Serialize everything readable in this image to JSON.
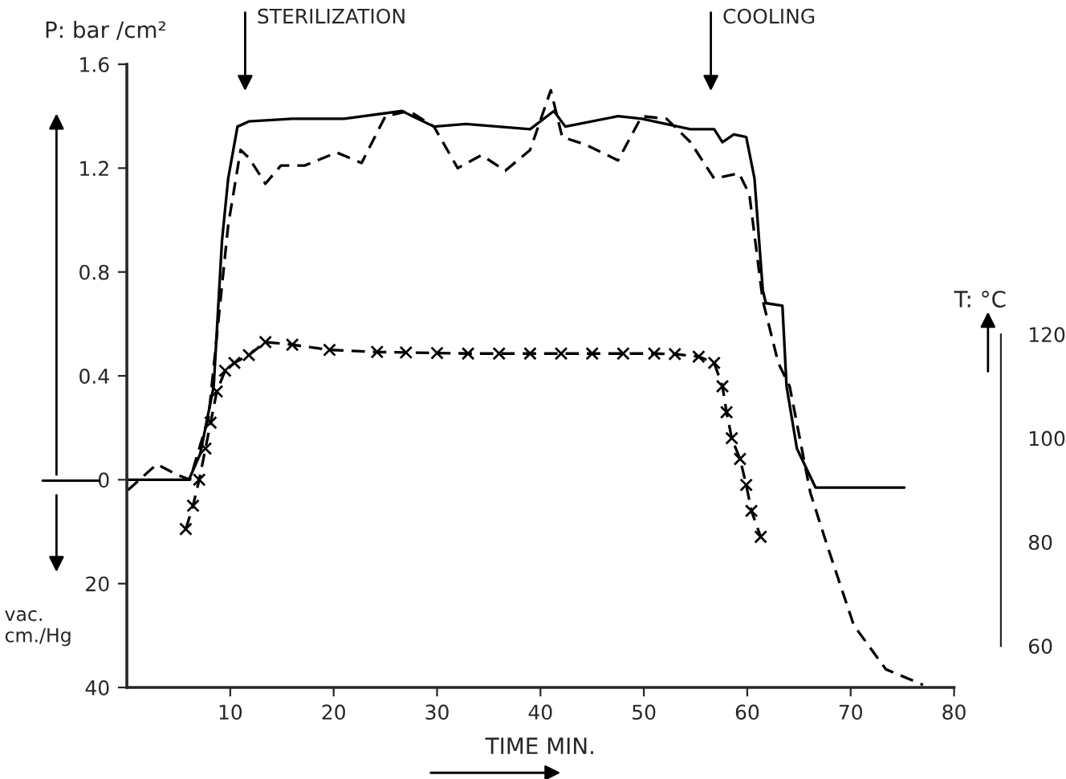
{
  "chart_data": {
    "type": "line",
    "xlabel": "TIME MIN.",
    "ylabel": "P: bar /cm²",
    "y2label": "T: °C",
    "xlim": [
      0,
      80
    ],
    "xticks": [
      10,
      20,
      30,
      40,
      50,
      60,
      70,
      80
    ],
    "ylim": [
      -0.8,
      1.6
    ],
    "yticks": [
      0,
      0.4,
      0.8,
      1.2,
      1.6
    ],
    "y3lim": [
      40,
      -80
    ],
    "y3ticks": [
      20,
      40
    ],
    "y2lim": [
      52,
      172
    ],
    "y2ticks": [
      60,
      80,
      100,
      120
    ],
    "grid": false,
    "legend": false,
    "annotations": [
      "STERILIZATION",
      "COOLING",
      "vac.\ncm./Hg"
    ],
    "series": [
      {
        "color": "#000000",
        "line_style": "solid",
        "marker": "none",
        "x": [
          0,
          6,
          7.1,
          8.4,
          9.2,
          9.8,
          10.7,
          11.8,
          16,
          21,
          26.6,
          29.7,
          32.8,
          39,
          41.3,
          42.4,
          47.5,
          49.8,
          54.5,
          56.8,
          57.6,
          58.7,
          59.9,
          60.7,
          61.5,
          61.8,
          63.4,
          63.8,
          64.8,
          66.6,
          75.2
        ],
        "values": [
          0,
          0,
          0.1,
          0.36,
          0.92,
          1.16,
          1.36,
          1.38,
          1.39,
          1.39,
          1.42,
          1.36,
          1.37,
          1.35,
          1.42,
          1.36,
          1.4,
          1.39,
          1.35,
          1.35,
          1.3,
          1.33,
          1.32,
          1.16,
          0.73,
          0.68,
          0.67,
          0.36,
          0.12,
          -0.03,
          -0.03
        ]
      },
      {
        "color": "#000000",
        "line_style": "dashed",
        "marker": "none",
        "x": [
          0.1,
          2.9,
          4.8,
          6.1,
          7.9,
          9,
          9.8,
          11,
          11.8,
          13.4,
          14.9,
          17.2,
          20.3,
          22.7,
          25,
          27.3,
          29.7,
          32,
          34.3,
          36.6,
          39,
          41,
          42.1,
          44.4,
          47.5,
          49.8,
          52.2,
          54.5,
          56.8,
          59.2,
          60.2,
          61.5,
          63,
          64.1,
          66.1,
          67.7,
          70.3,
          73.4,
          77
        ],
        "values": [
          -0.04,
          0.06,
          0.02,
          0,
          0.24,
          0.67,
          0.98,
          1.27,
          1.24,
          1.14,
          1.21,
          1.21,
          1.26,
          1.22,
          1.4,
          1.42,
          1.36,
          1.2,
          1.25,
          1.19,
          1.27,
          1.5,
          1.32,
          1.29,
          1.23,
          1.4,
          1.39,
          1.3,
          1.16,
          1.18,
          1.1,
          0.69,
          0.45,
          0.36,
          -0.05,
          -0.25,
          -0.56,
          -0.73,
          -0.79
        ]
      },
      {
        "color": "#000000",
        "line_style": "dashed",
        "marker": "cross",
        "axis": "y2",
        "x": [
          5.7,
          6.4,
          7,
          7.6,
          8.1,
          8.7,
          9.5,
          10.4,
          11.8,
          13.4,
          16,
          19.6,
          24.2,
          27,
          30,
          33,
          36,
          39,
          42,
          45,
          48,
          51,
          53,
          55.3,
          56.8,
          57.6,
          58,
          58.5,
          59.3,
          59.9,
          60.4,
          61.3
        ],
        "values": [
          82.5,
          87,
          92,
          98,
          103,
          109,
          113,
          114.5,
          116,
          118.5,
          118,
          117,
          116.6,
          116.5,
          116.4,
          116.3,
          116.3,
          116.3,
          116.3,
          116.3,
          116.3,
          116.3,
          116.2,
          115.7,
          114.5,
          110,
          105,
          100,
          96,
          91,
          86,
          81
        ]
      }
    ]
  }
}
